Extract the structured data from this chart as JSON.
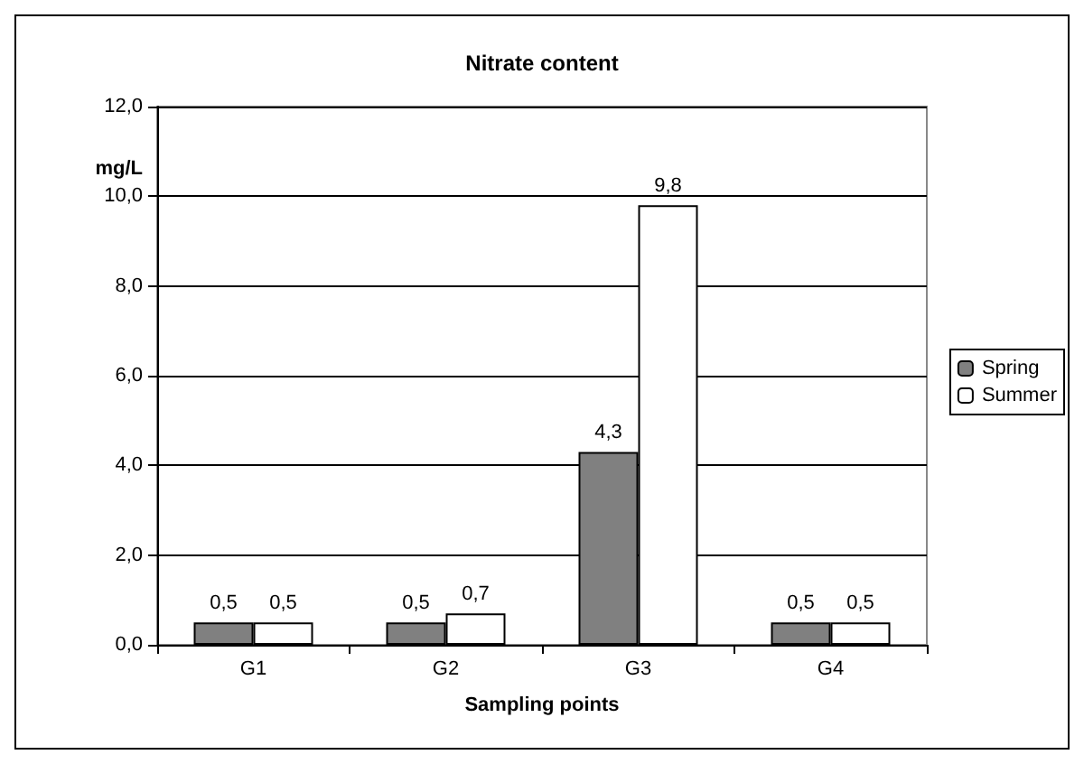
{
  "chart_data": {
    "type": "bar",
    "title": "Nitrate content",
    "xlabel": "Sampling points",
    "ylabel": "mg/L",
    "categories": [
      "G1",
      "G2",
      "G3",
      "G4"
    ],
    "series": [
      {
        "name": "Spring",
        "color": "#808080",
        "values": [
          0.5,
          0.5,
          4.3,
          0.5
        ],
        "value_labels": [
          "0,5",
          "0,5",
          "4,3",
          "0,5"
        ]
      },
      {
        "name": "Summer",
        "color": "#ffffff",
        "values": [
          0.5,
          0.7,
          9.8,
          0.5
        ],
        "value_labels": [
          "0,5",
          "0,7",
          "9,8",
          "0,5"
        ]
      }
    ],
    "ylim": [
      0,
      12
    ],
    "yticks": [
      {
        "value": 0,
        "label": "0,0"
      },
      {
        "value": 2,
        "label": "2,0"
      },
      {
        "value": 4,
        "label": "4,0"
      },
      {
        "value": 6,
        "label": "6,0"
      },
      {
        "value": 8,
        "label": "8,0"
      },
      {
        "value": 10,
        "label": "10,0"
      },
      {
        "value": 12,
        "label": "12,0"
      }
    ],
    "grid": "y",
    "legend": "right"
  }
}
